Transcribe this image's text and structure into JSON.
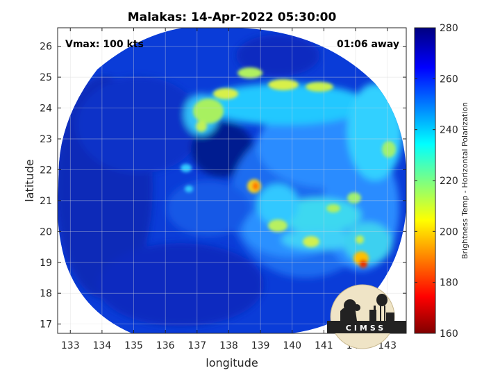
{
  "chart_data": {
    "type": "heatmap",
    "title": "Malakas: 14-Apr-2022 05:30:00",
    "xlabel": "longitude",
    "ylabel": "latitude",
    "xlim": [
      132.6,
      143.6
    ],
    "ylim": [
      16.7,
      26.6
    ],
    "xticks": [
      133,
      134,
      135,
      136,
      137,
      138,
      139,
      140,
      141,
      142,
      143
    ],
    "yticks": [
      17,
      18,
      19,
      20,
      21,
      22,
      23,
      24,
      25,
      26
    ],
    "grid": true,
    "colorbar": {
      "label": "Brightness Temp - Horizontal Polarization",
      "range": [
        160,
        280
      ],
      "ticks": [
        160,
        180,
        200,
        220,
        240,
        260,
        280
      ],
      "colormap": "jet"
    },
    "annotations": {
      "vmax": "Vmax: 100 kts",
      "time_away": "01:06 away"
    },
    "swath": {
      "center_lon": 138.1,
      "center_lat": 21.6,
      "shape": "circular scan"
    },
    "features": [
      {
        "name": "storm center",
        "lon": 138.6,
        "lat": 21.4,
        "tb": 210
      },
      {
        "name": "rainband",
        "lon": 142.0,
        "lat": 18.9,
        "tb": 185
      },
      {
        "name": "rainband",
        "lon": 137.5,
        "lat": 24.2,
        "tb": 222
      },
      {
        "name": "rainband",
        "lon": 140.0,
        "lat": 24.8,
        "tb": 228
      }
    ]
  },
  "logo": {
    "text": "CIMSS"
  }
}
